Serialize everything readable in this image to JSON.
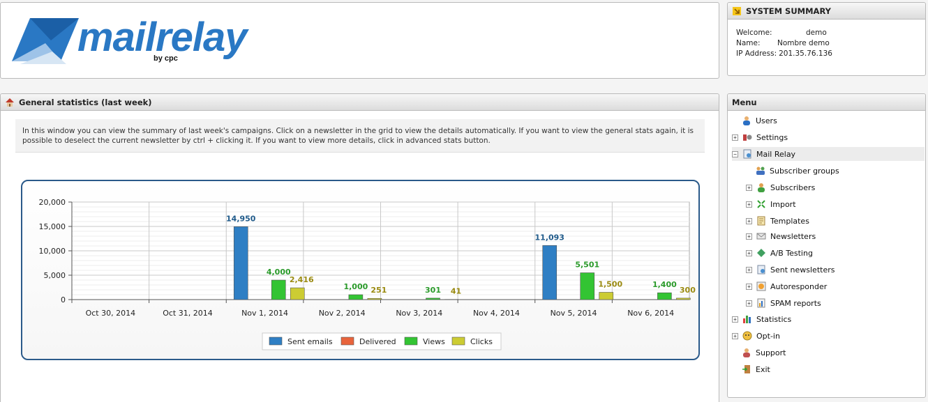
{
  "logo": {
    "text": "mailrelay",
    "byline": "by cpc"
  },
  "system_summary": {
    "title": "SYSTEM SUMMARY",
    "welcome_label": "Welcome:",
    "welcome_value": "demo",
    "name_label": "Name:",
    "name_value": "Nombre demo",
    "ip_label": "IP Address:",
    "ip_value": "201.35.76.136"
  },
  "stats": {
    "title": "General statistics (last week)",
    "info": "In this window you can view the summary of last week's campaigns. Click on a newsletter in the grid to view the details automatically. If you want to view the general stats again, it is possible to deselect the current newsletter by ctrl + clicking it. If you want to view more details, click in advanced stats button."
  },
  "chart_data": {
    "type": "bar",
    "categories": [
      "Oct 30, 2014",
      "Oct 31, 2014",
      "Nov 1, 2014",
      "Nov 2, 2014",
      "Nov 3, 2014",
      "Nov 4, 2014",
      "Nov 5, 2014",
      "Nov 6, 2014"
    ],
    "series": [
      {
        "name": "Sent emails",
        "color": "#2f7fc4",
        "values": [
          0,
          0,
          14950,
          0,
          0,
          0,
          11093,
          0
        ],
        "labels": [
          "",
          "",
          "14,950",
          "",
          "",
          "",
          "11,093",
          ""
        ]
      },
      {
        "name": "Delivered",
        "color": "#e8643c",
        "values": [
          0,
          0,
          0,
          0,
          0,
          0,
          0,
          0
        ],
        "labels": [
          "",
          "",
          "",
          "",
          "",
          "",
          "",
          ""
        ]
      },
      {
        "name": "Views",
        "color": "#33c433",
        "values": [
          0,
          0,
          4000,
          1000,
          301,
          0,
          5501,
          1400
        ],
        "labels": [
          "",
          "",
          "4,000",
          "1,000",
          "301",
          "",
          "5,501",
          "1,400"
        ]
      },
      {
        "name": "Clicks",
        "color": "#cccc33",
        "values": [
          0,
          0,
          2416,
          251,
          41,
          0,
          1500,
          300
        ],
        "labels": [
          "",
          "",
          "2,416",
          "251",
          "41",
          "",
          "1,500",
          "300"
        ]
      }
    ],
    "yticks": [
      "0",
      "5,000",
      "10,000",
      "15,000",
      "20,000"
    ],
    "ylim": [
      0,
      20000
    ],
    "grid": true,
    "legend": "bottom"
  },
  "menu": {
    "title": "Menu",
    "items": [
      {
        "label": "Users"
      },
      {
        "label": "Settings"
      },
      {
        "label": "Mail Relay"
      },
      {
        "label": "Subscriber groups"
      },
      {
        "label": "Subscribers"
      },
      {
        "label": "Import"
      },
      {
        "label": "Templates"
      },
      {
        "label": "Newsletters"
      },
      {
        "label": "A/B Testing"
      },
      {
        "label": "Sent newsletters"
      },
      {
        "label": "Autoresponder"
      },
      {
        "label": "SPAM reports"
      },
      {
        "label": "Statistics"
      },
      {
        "label": "Opt-in"
      },
      {
        "label": "Support"
      },
      {
        "label": "Exit"
      }
    ]
  }
}
